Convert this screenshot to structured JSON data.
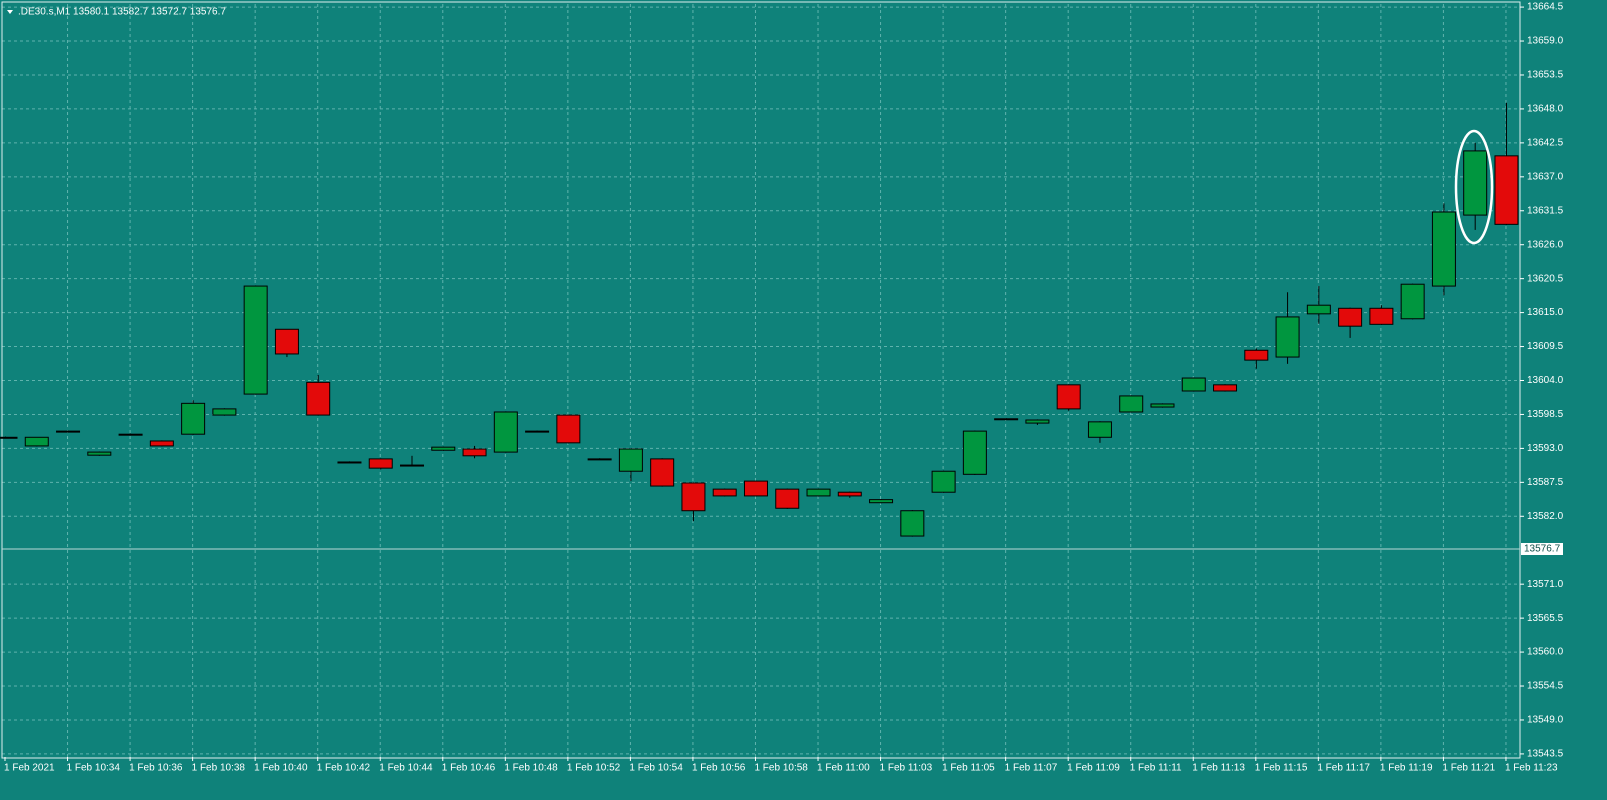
{
  "chart_data": {
    "type": "candlestick",
    "header": ".DE30.s,M1  13580.1 13582.7 13572.7 13576.7",
    "categories": [
      "1 Feb 2021",
      null,
      "1 Feb 10:34",
      null,
      "1 Feb 10:36",
      null,
      "1 Feb 10:38",
      null,
      "1 Feb 10:40",
      null,
      "1 Feb 10:42",
      null,
      "1 Feb 10:44",
      null,
      "1 Feb 10:46",
      null,
      "1 Feb 10:48",
      null,
      "1 Feb 10:52",
      null,
      "1 Feb 10:54",
      null,
      "1 Feb 10:56",
      null,
      "1 Feb 10:58",
      null,
      "1 Feb 11:00",
      null,
      "1 Feb 11:03",
      null,
      "1 Feb 11:05",
      null,
      "1 Feb 11:07",
      null,
      "1 Feb 11:09",
      null,
      "1 Feb 11:11",
      null,
      "1 Feb 11:13",
      null,
      "1 Feb 11:15",
      null,
      "1 Feb 11:17",
      null,
      "1 Feb 11:19",
      null,
      "1 Feb 11:21",
      null,
      "1 Feb 11:23"
    ],
    "open": [
      13594.8,
      13593.4,
      13595.8,
      13591.9,
      13595.3,
      13594.2,
      13595.3,
      13598.4,
      13601.8,
      13612.3,
      13603.7,
      13590.8,
      13591.3,
      13590.3,
      13592.7,
      13592.9,
      13592.4,
      13595.8,
      13598.4,
      13591.3,
      13589.3,
      13591.3,
      13587.4,
      13586.4,
      13587.7,
      13586.4,
      13585.3,
      13585.9,
      13584.2,
      13578.8,
      13585.9,
      13588.8,
      13597.8,
      13597.1,
      13603.3,
      13594.8,
      13598.9,
      13599.7,
      13602.3,
      13603.3,
      13608.9,
      13607.8,
      13614.8,
      13615.7,
      13615.7,
      13614.0,
      13619.3,
      13630.8,
      13640.4
    ],
    "high": [
      13594.9,
      13594.8,
      13595.9,
      13592.5,
      13595.4,
      13594.3,
      13600.8,
      13599.5,
      13619.4,
      13612.3,
      13604.9,
      13590.9,
      13591.4,
      13591.8,
      13593.3,
      13593.4,
      13599.0,
      13595.9,
      13598.5,
      13591.4,
      13593.0,
      13591.4,
      13587.5,
      13586.5,
      13587.8,
      13586.5,
      13586.5,
      13586.0,
      13584.8,
      13583.0,
      13589.4,
      13595.9,
      13597.9,
      13597.7,
      13603.4,
      13597.4,
      13601.6,
      13600.3,
      13604.5,
      13603.4,
      13609.2,
      13618.3,
      13619.3,
      13615.8,
      13616.2,
      13619.7,
      13632.7,
      13642.5,
      13649.0
    ],
    "low": [
      13594.7,
      13593.3,
      13595.7,
      13591.8,
      13595.2,
      13593.3,
      13595.2,
      13598.3,
      13601.7,
      13607.8,
      13598.3,
      13590.7,
      13589.6,
      13590.2,
      13592.6,
      13591.4,
      13592.3,
      13595.7,
      13593.8,
      13591.2,
      13587.7,
      13586.8,
      13581.2,
      13585.2,
      13585.2,
      13583.2,
      13585.2,
      13585.0,
      13584.1,
      13578.7,
      13585.8,
      13588.7,
      13597.7,
      13596.8,
      13599.1,
      13593.9,
      13598.8,
      13599.6,
      13602.2,
      13602.2,
      13605.9,
      13606.7,
      13613.2,
      13610.9,
      13613.0,
      13613.9,
      13617.8,
      13628.4,
      13629.2
    ],
    "close": [
      13594.8,
      13594.8,
      13595.8,
      13592.4,
      13595.3,
      13593.4,
      13600.3,
      13599.4,
      13619.3,
      13608.3,
      13598.4,
      13590.8,
      13589.8,
      13590.3,
      13593.2,
      13591.8,
      13598.9,
      13595.8,
      13593.9,
      13591.3,
      13592.9,
      13586.9,
      13582.9,
      13585.3,
      13585.3,
      13583.3,
      13586.4,
      13585.3,
      13584.7,
      13582.9,
      13589.3,
      13595.8,
      13597.8,
      13597.6,
      13599.4,
      13597.3,
      13601.5,
      13600.2,
      13604.4,
      13602.3,
      13607.3,
      13614.3,
      13616.2,
      13612.8,
      13613.1,
      13619.6,
      13631.3,
      13641.2,
      13629.3
    ],
    "up_color": "#00963f",
    "down_color": "#e30a0a",
    "ylim": [
      13543,
      13665
    ],
    "yticks": [
      13543.5,
      {
        "value": 13549,
        "label": "13549.0"
      },
      13554.5,
      {
        "value": 13560,
        "label": "13560.0"
      },
      13565.5,
      {
        "value": 13571,
        "label": "13571.0"
      },
      {
        "value": 13582,
        "label": "13582.0"
      },
      13587.5,
      {
        "value": 13593,
        "label": "13593.0"
      },
      13598.5,
      {
        "value": 13604,
        "label": "13604.0"
      },
      13609.5,
      {
        "value": 13615,
        "label": "13615.0"
      },
      13620.5,
      {
        "value": 13626,
        "label": "13626.0"
      },
      13631.5,
      {
        "value": 13637,
        "label": "13637.0"
      },
      13642.5,
      {
        "value": 13648,
        "label": "13648.0"
      },
      13653.5,
      {
        "value": 13659,
        "label": "13659.0"
      },
      13664.5
    ],
    "current_price": 13576.7,
    "grid": true
  }
}
